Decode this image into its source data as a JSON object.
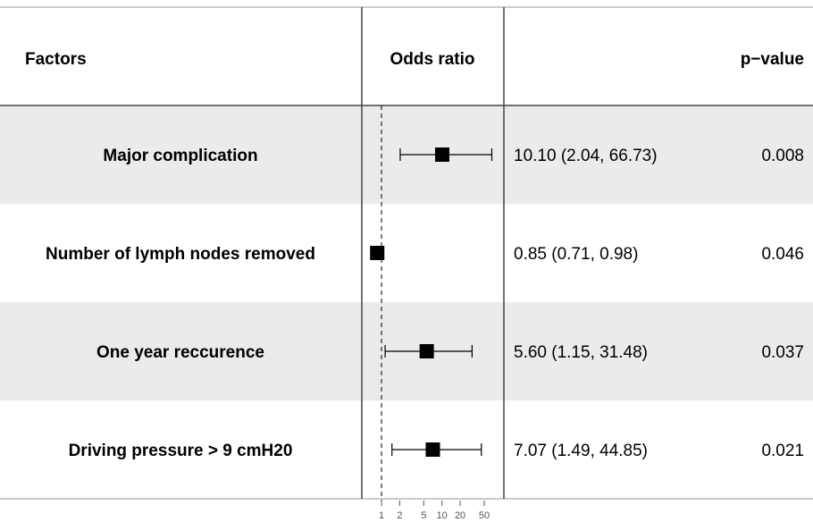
{
  "header": {
    "factors": "Factors",
    "odds_ratio": "Odds ratio",
    "p_value": "p−value"
  },
  "chart_data": {
    "type": "forest",
    "scale": "log",
    "reference_line": 1,
    "xlim": [
      1,
      50
    ],
    "x_ticks": [
      "1",
      "2",
      "5",
      "10",
      "20",
      "50"
    ],
    "rows": [
      {
        "factor": "Major complication",
        "or": 10.1,
        "low": 2.04,
        "high": 66.73,
        "ci_text": "10.10 (2.04, 66.73)",
        "p": "0.008",
        "shaded": true
      },
      {
        "factor": "Number of lymph nodes removed",
        "or": 0.85,
        "low": 0.71,
        "high": 0.98,
        "ci_text": "0.85 (0.71, 0.98)",
        "p": "0.046",
        "shaded": false
      },
      {
        "factor": "One year reccurence",
        "or": 5.6,
        "low": 1.15,
        "high": 31.48,
        "ci_text": "5.60 (1.15, 31.48)",
        "p": "0.037",
        "shaded": true
      },
      {
        "factor": "Driving pressure > 9  cmH20",
        "or": 7.07,
        "low": 1.49,
        "high": 44.85,
        "ci_text": "7.07 (1.49, 44.85)",
        "p": "0.021",
        "shaded": false
      }
    ]
  }
}
